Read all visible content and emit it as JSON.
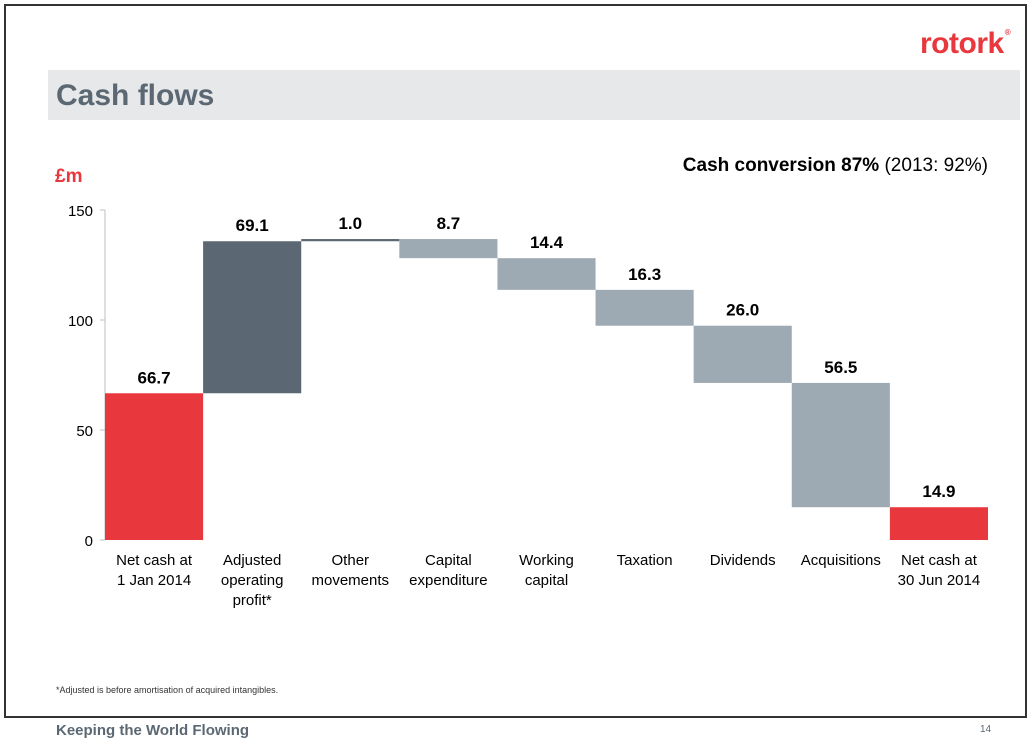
{
  "logo": {
    "text": "rotork",
    "mark": "®"
  },
  "header": {
    "title": "Cash flows"
  },
  "subtitle": {
    "bold": "Cash conversion 87%",
    "rest": " (2013: 92%)"
  },
  "unit_label": "£m",
  "footnote": "*Adjusted is before amortisation of acquired intangibles.",
  "footer": {
    "tagline": "Keeping the World Flowing",
    "page_number": "14"
  },
  "colors": {
    "total": "#e8383d",
    "increase": "#5b6873",
    "decrease": "#9eaab3",
    "accent": "#e8383d"
  },
  "chart_data": {
    "type": "bar",
    "variant": "waterfall",
    "categories": [
      [
        "Net cash at",
        "1 Jan 2014"
      ],
      [
        "Adjusted",
        "operating",
        "profit*"
      ],
      [
        "Other",
        "movements"
      ],
      [
        "Capital",
        "expenditure"
      ],
      [
        "Working",
        "capital"
      ],
      [
        "Taxation"
      ],
      [
        "Dividends"
      ],
      [
        "Acquisitions"
      ],
      [
        "Net cash at",
        "30 Jun 2014"
      ]
    ],
    "values": [
      66.7,
      69.1,
      1.0,
      -8.7,
      -14.4,
      -16.3,
      -26.0,
      -56.5,
      14.9
    ],
    "data_labels": [
      "66.7",
      "69.1",
      "1.0",
      "8.7",
      "14.4",
      "16.3",
      "26.0",
      "56.5",
      "14.9"
    ],
    "kinds": [
      "total",
      "increase",
      "increase",
      "decrease",
      "decrease",
      "decrease",
      "decrease",
      "decrease",
      "total"
    ],
    "y_ticks": [
      "0",
      "50",
      "100",
      "150"
    ],
    "ylim": [
      0,
      150
    ],
    "grid": false,
    "legend": "none"
  }
}
